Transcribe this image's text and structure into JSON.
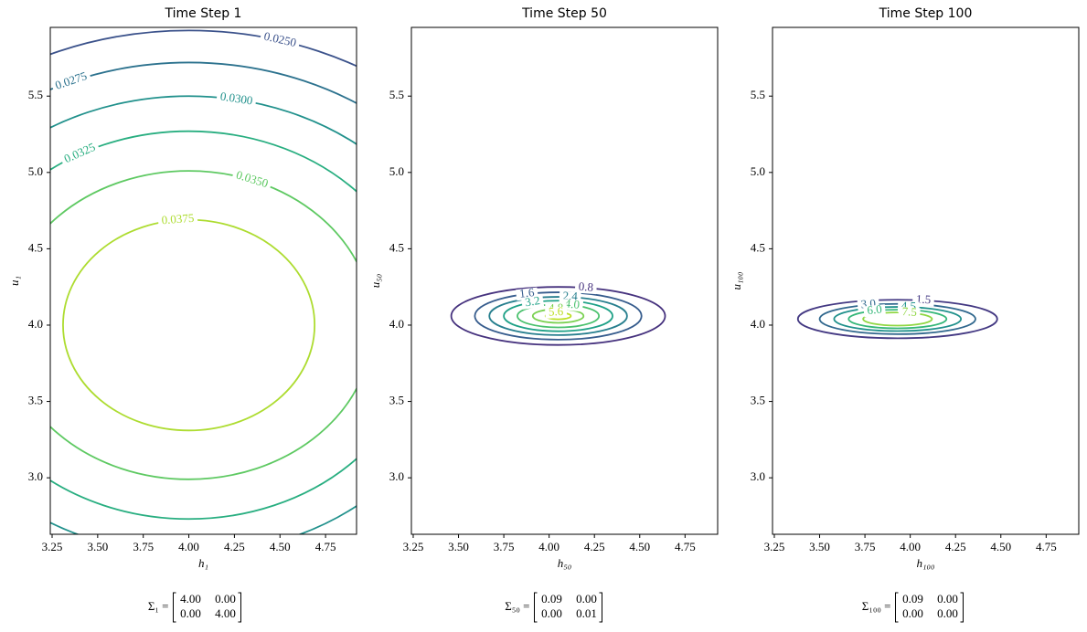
{
  "chart_data": [
    {
      "type": "contour",
      "title": "Time Step 1",
      "xlabel": "h₁",
      "ylabel": "u₁",
      "xlim": [
        3.24,
        4.92
      ],
      "ylim": [
        2.63,
        5.95
      ],
      "xticks": [
        3.25,
        {
          "value": 3.5,
          "label": "3.50"
        },
        3.75,
        {
          "value": 4,
          "label": "4.00"
        },
        4.25,
        {
          "value": 4.5,
          "label": "4.50"
        },
        4.75
      ],
      "yticks": [
        {
          "value": 3,
          "label": "3.0"
        },
        3.5,
        {
          "value": 4,
          "label": "4.0"
        },
        4.5,
        {
          "value": 5,
          "label": "5.0"
        },
        5.5
      ],
      "center": [
        4.0,
        4.0
      ],
      "contours": [
        {
          "level": 0.025,
          "label": "0.0250",
          "rx": 1.93,
          "ry": 1.93,
          "color": "#3b528b"
        },
        {
          "level": 0.0275,
          "label": "0.0275",
          "rx": 1.72,
          "ry": 1.72,
          "color": "#2c728e"
        },
        {
          "level": 0.03,
          "label": "0.0300",
          "rx": 1.5,
          "ry": 1.5,
          "color": "#21918c"
        },
        {
          "level": 0.0325,
          "label": "0.0325",
          "rx": 1.27,
          "ry": 1.27,
          "color": "#28ae80"
        },
        {
          "level": 0.035,
          "label": "0.0350",
          "rx": 1.01,
          "ry": 1.01,
          "color": "#5ec962"
        },
        {
          "level": 0.0375,
          "label": "0.0375",
          "rx": 0.69,
          "ry": 0.69,
          "color": "#addc30"
        }
      ],
      "sigma": {
        "label": "Σ₁ =",
        "matrix": [
          [
            "4.00",
            "0.00"
          ],
          [
            "0.00",
            "4.00"
          ]
        ]
      }
    },
    {
      "type": "contour",
      "title": "Time Step 50",
      "xlabel": "h₅₀",
      "ylabel": "u₅₀",
      "xlim": [
        3.24,
        4.93
      ],
      "ylim": [
        2.63,
        5.95
      ],
      "xticks": [
        3.25,
        {
          "value": 3.5,
          "label": "3.50"
        },
        3.75,
        {
          "value": 4,
          "label": "4.00"
        },
        4.25,
        {
          "value": 4.5,
          "label": "4.50"
        },
        4.75
      ],
      "yticks": [
        {
          "value": 3,
          "label": "3.0"
        },
        3.5,
        {
          "value": 4,
          "label": "4.0"
        },
        4.5,
        {
          "value": 5,
          "label": "5.0"
        },
        5.5
      ],
      "center": [
        4.05,
        4.06
      ],
      "contours": [
        {
          "level": 0.8,
          "label": "0.8",
          "rx": 0.59,
          "ry": 0.19,
          "color": "#46327e"
        },
        {
          "level": 1.6,
          "label": "1.6",
          "rx": 0.46,
          "ry": 0.155,
          "color": "#365c8d"
        },
        {
          "level": 2.4,
          "label": "2.4",
          "rx": 0.38,
          "ry": 0.125,
          "color": "#277f8e"
        },
        {
          "level": 3.2,
          "label": "3.2",
          "rx": 0.3,
          "ry": 0.1,
          "color": "#1fa187"
        },
        {
          "level": 4.0,
          "label": "4.0",
          "rx": 0.225,
          "ry": 0.075,
          "color": "#4ac16d"
        },
        {
          "level": 4.8,
          "label": "4.8",
          "rx": 0.14,
          "ry": 0.045,
          "color": "#7ad151"
        },
        {
          "level": 5.6,
          "label": "5.6",
          "rx": 0.07,
          "ry": 0.022,
          "color": "#bddf26"
        }
      ],
      "sigma": {
        "label": "Σ₅₀ =",
        "matrix": [
          [
            "0.09",
            "0.00"
          ],
          [
            "0.00",
            "0.01"
          ]
        ]
      }
    },
    {
      "type": "contour",
      "title": "Time Step 100",
      "xlabel": "h₁₀₀",
      "ylabel": "u₁₀₀",
      "xlim": [
        3.24,
        4.93
      ],
      "ylim": [
        2.63,
        5.95
      ],
      "xticks": [
        3.25,
        {
          "value": 3.5,
          "label": "3.50"
        },
        3.75,
        {
          "value": 4,
          "label": "4.00"
        },
        4.25,
        {
          "value": 4.5,
          "label": "4.50"
        },
        4.75
      ],
      "yticks": [
        {
          "value": 3,
          "label": "3.0"
        },
        3.5,
        {
          "value": 4,
          "label": "4.0"
        },
        4.5,
        {
          "value": 5,
          "label": "5.0"
        },
        5.5
      ],
      "center": [
        3.93,
        4.04
      ],
      "contours": [
        {
          "level": 1.5,
          "label": "1.5",
          "rx": 0.55,
          "ry": 0.126,
          "color": "#443983"
        },
        {
          "level": 3.0,
          "label": "3.0",
          "rx": 0.43,
          "ry": 0.099,
          "color": "#31688e"
        },
        {
          "level": 4.5,
          "label": "4.5",
          "rx": 0.35,
          "ry": 0.079,
          "color": "#21918c"
        },
        {
          "level": 6.0,
          "label": "6.0",
          "rx": 0.27,
          "ry": 0.061,
          "color": "#35b779"
        },
        {
          "level": 7.5,
          "label": "7.5",
          "rx": 0.19,
          "ry": 0.043,
          "color": "#90d743"
        }
      ],
      "sigma": {
        "label": "Σ₁₀₀ =",
        "matrix": [
          [
            "0.09",
            "0.00"
          ],
          [
            "0.00",
            "0.00"
          ]
        ]
      }
    }
  ]
}
